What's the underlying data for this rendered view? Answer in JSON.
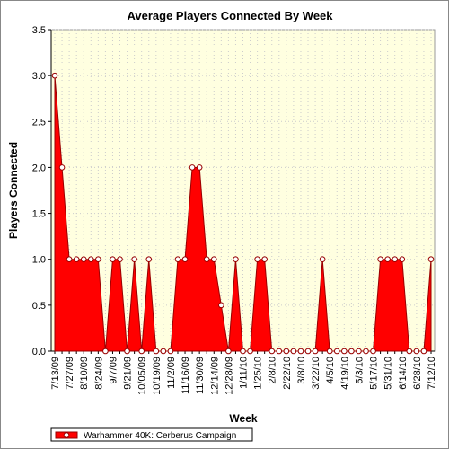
{
  "chart_data": {
    "type": "area",
    "title": "Average Players Connected By Week",
    "x_label": "Week",
    "y_label": "Players Connected",
    "categories": [
      "7/13/09",
      null,
      "7/27/09",
      null,
      "8/10/09",
      null,
      "8/24/09",
      null,
      "9/7/09",
      null,
      "9/21/09",
      null,
      "10/05/09",
      null,
      "10/19/09",
      null,
      "11/2/09",
      null,
      "11/16/09",
      null,
      "11/30/09",
      null,
      "12/14/09",
      null,
      "12/28/09",
      null,
      "1/11/10",
      null,
      "1/25/10",
      null,
      "2/8/10",
      null,
      "2/22/10",
      null,
      "3/8/10",
      null,
      "3/22/10",
      null,
      "4/5/10",
      null,
      "4/19/10",
      null,
      "5/3/10",
      null,
      "5/17/10",
      null,
      "5/31/10",
      null,
      "6/14/10",
      null,
      "6/28/10",
      null,
      "7/12/10"
    ],
    "series": [
      {
        "name": "Warhammer 40K: Cerberus Campaign",
        "color": "#ff0000",
        "values": [
          3,
          2,
          1,
          1,
          1,
          1,
          1,
          0,
          1,
          1,
          0,
          1,
          0,
          1,
          0,
          0,
          0,
          1,
          1,
          2,
          2,
          1,
          1,
          0.5,
          0,
          1,
          0,
          0,
          1,
          1,
          0,
          0,
          0,
          0,
          0,
          0,
          0,
          1,
          0,
          0,
          0,
          0,
          0,
          0,
          0,
          1,
          1,
          1,
          1,
          0,
          0,
          0,
          1
        ]
      }
    ],
    "ylim": [
      0,
      3.5
    ],
    "yticks": [
      {
        "value": 0,
        "label": "0.0"
      },
      {
        "value": 0.5,
        "label": "0.5"
      },
      {
        "value": 1,
        "label": "1.0"
      },
      {
        "value": 1.5,
        "label": "1.5"
      },
      {
        "value": 2,
        "label": "2.0"
      },
      {
        "value": 2.5,
        "label": "2.5"
      },
      {
        "value": 3,
        "label": "3.0"
      },
      {
        "value": 3.5,
        "label": "3.5"
      }
    ],
    "grid": true
  }
}
